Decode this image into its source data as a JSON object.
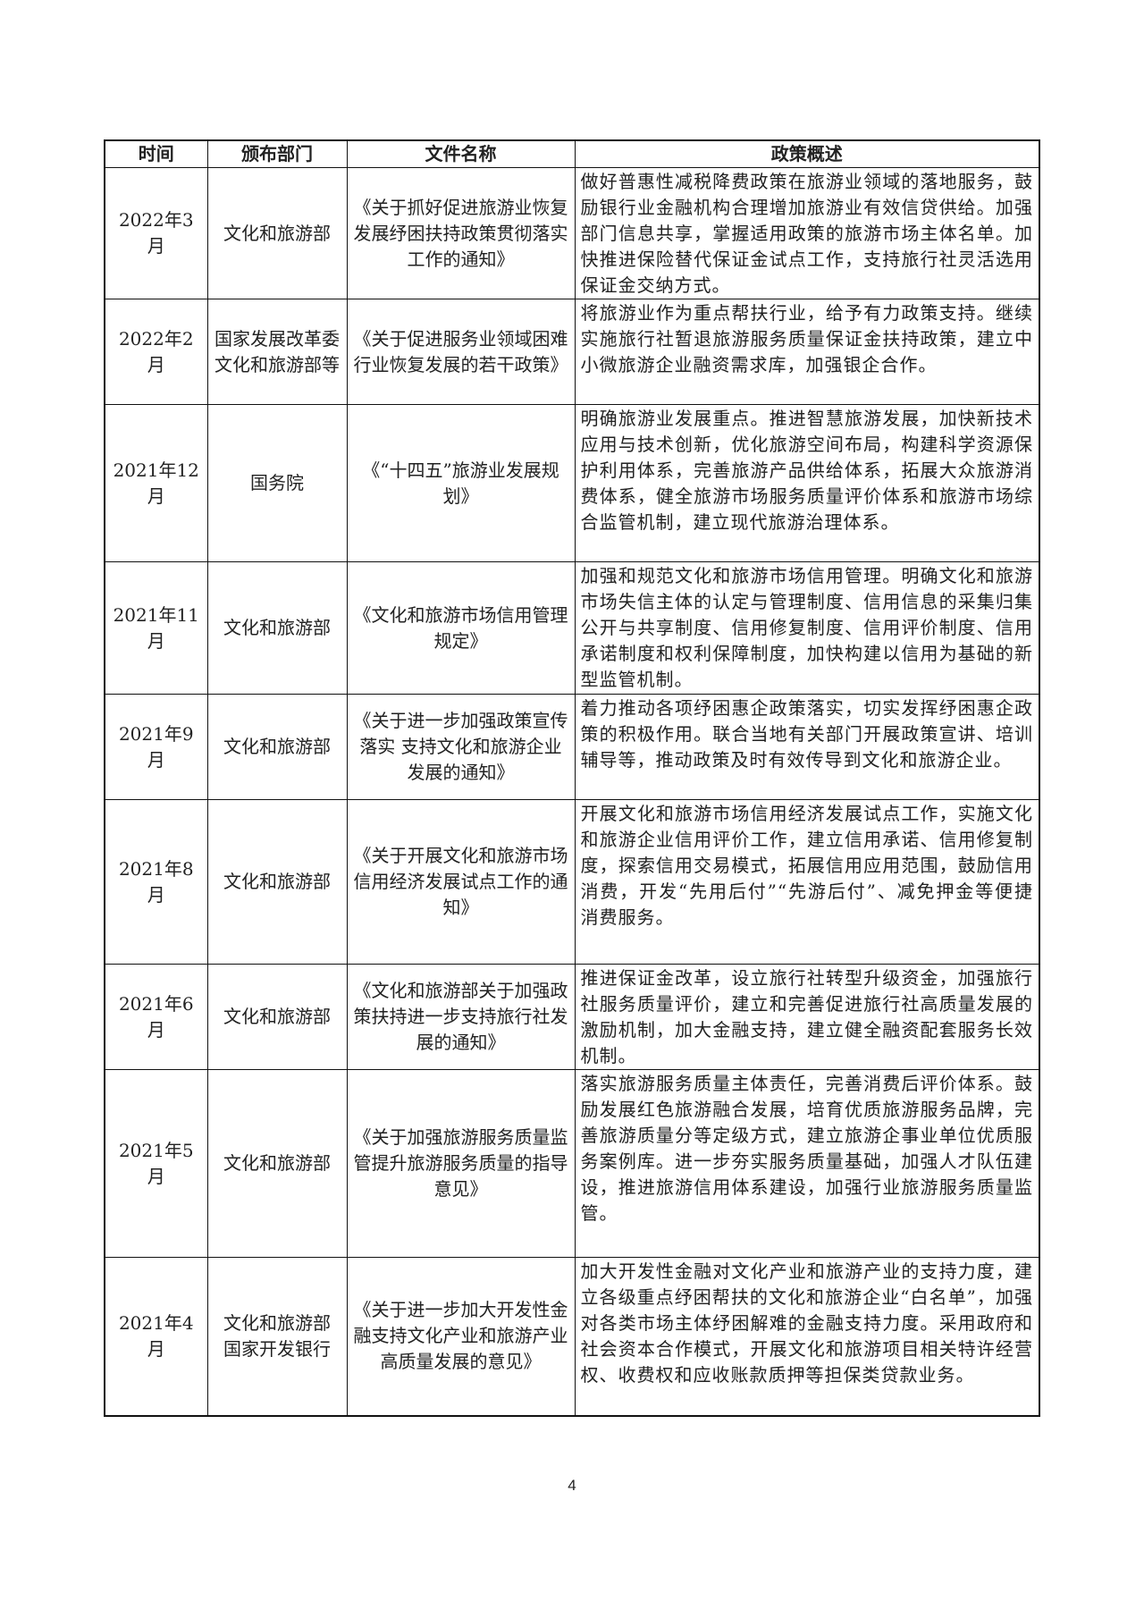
{
  "headers": [
    "时间",
    "颁布部门",
    "文件名称",
    "政策概述"
  ],
  "rows": [
    {
      "time": "2022年3月",
      "dept": "文化和旅游部",
      "doc": "《关于抓好促进旅游业恢复发展纾困扶持政策贯彻落实工作的通知》",
      "summary": "做好普惠性减税降费政策在旅游业领域的落地服务，鼓励银行业金融机构合理增加旅游业有效信贷供给。加强部门信息共享，掌握适用政策的旅游市场主体名单。加快推进保险替代保证金试点工作，支持旅行社灵活选用保证金交纳方式。"
    },
    {
      "time": "2022年2月",
      "dept": "国家发展改革委 文化和旅游部等",
      "doc": "《关于促进服务业领域困难行业恢复发展的若干政策》",
      "summary": "将旅游业作为重点帮扶行业，给予有力政策支持。继续实施旅行社暂退旅游服务质量保证金扶持政策，建立中小微旅游企业融资需求库，加强银企合作。"
    },
    {
      "time": "2021年12月",
      "dept": "国务院",
      "doc": "《“十四五”旅游业发展规划》",
      "summary": "明确旅游业发展重点。推进智慧旅游发展，加快新技术应用与技术创新，优化旅游空间布局，构建科学资源保护利用体系，完善旅游产品供给体系，拓展大众旅游消费体系，健全旅游市场服务质量评价体系和旅游市场综合监管机制，建立现代旅游治理体系。"
    },
    {
      "time": "2021年11月",
      "dept": "文化和旅游部",
      "doc": "《文化和旅游市场信用管理规定》",
      "summary": "加强和规范文化和旅游市场信用管理。明确文化和旅游市场失信主体的认定与管理制度、信用信息的采集归集公开与共享制度、信用修复制度、信用评价制度、信用承诺制度和权利保障制度，加快构建以信用为基础的新型监管机制。"
    },
    {
      "time": "2021年9月",
      "dept": "文化和旅游部",
      "doc": "《关于进一步加强政策宣传落实 支持文化和旅游企业发展的通知》",
      "summary": "着力推动各项纾困惠企政策落实，切实发挥纾困惠企政策的积极作用。联合当地有关部门开展政策宣讲、培训辅导等，推动政策及时有效传导到文化和旅游企业。"
    },
    {
      "time": "2021年8月",
      "dept": "文化和旅游部",
      "doc": "《关于开展文化和旅游市场信用经济发展试点工作的通知》",
      "summary": "开展文化和旅游市场信用经济发展试点工作，实施文化和旅游企业信用评价工作，建立信用承诺、信用修复制度，探索信用交易模式，拓展信用应用范围，鼓励信用消费，开发“先用后付”“先游后付”、减免押金等便捷消费服务。"
    },
    {
      "time": "2021年6月",
      "dept": "文化和旅游部",
      "doc": "《文化和旅游部关于加强政策扶持进一步支持旅行社发展的通知》",
      "summary": "推进保证金改革，设立旅行社转型升级资金，加强旅行社服务质量评价，建立和完善促进旅行社高质量发展的激励机制，加大金融支持，建立健全融资配套服务长效机制。"
    },
    {
      "time": "2021年5月",
      "dept": "文化和旅游部",
      "doc": "《关于加强旅游服务质量监管提升旅游服务质量的指导意见》",
      "summary": "落实旅游服务质量主体责任，完善消费后评价体系。鼓励发展红色旅游融合发展，培育优质旅游服务品牌，完善旅游质量分等定级方式，建立旅游企事业单位优质服务案例库。进一步夯实服务质量基础，加强人才队伍建设，推进旅游信用体系建设，加强行业旅游服务质量监管。"
    },
    {
      "time": "2021年4月",
      "dept": "文化和旅游部 国家开发银行",
      "doc": "《关于进一步加大开发性金融支持文化产业和旅游产业高质量发展的意见》",
      "summary": "加大开发性金融对文化产业和旅游产业的支持力度，建立各级重点纾困帮扶的文化和旅游企业“白名单”，加强对各类市场主体纾困解难的金融支持力度。采用政府和社会资本合作模式，开展文化和旅游项目相关特许经营权、收费权和应收账款质押等担保类贷款业务。"
    }
  ],
  "page_number": "4"
}
